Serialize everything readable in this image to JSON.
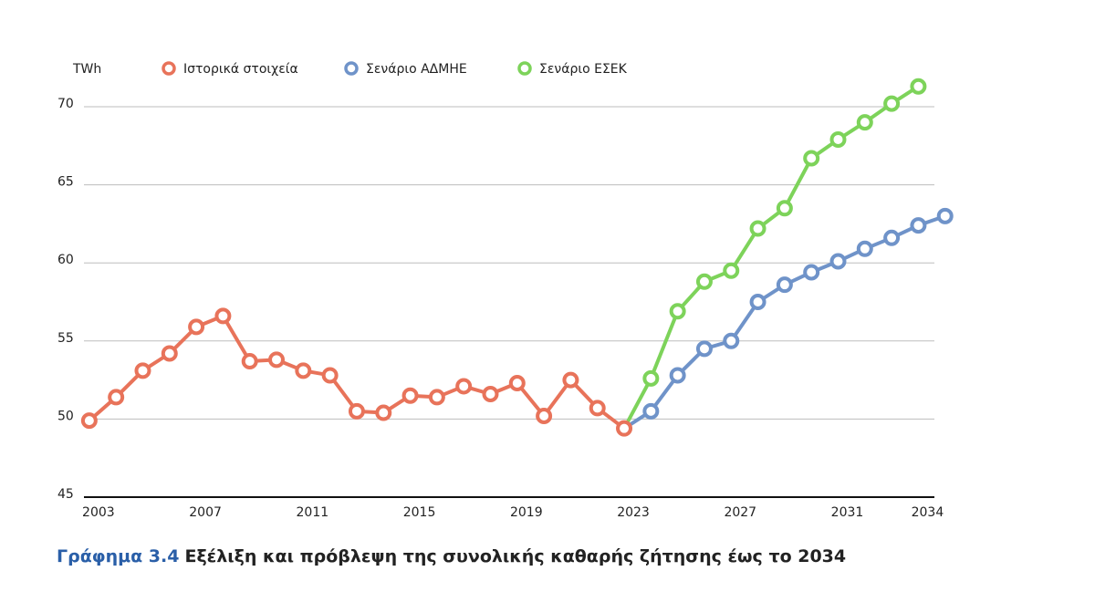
{
  "chart_data": {
    "type": "line",
    "y_label": "TWh",
    "caption_label": "Γράφημα 3.4",
    "caption_text": "Εξέλιξη και πρόβλεψη της συνολικής καθαρής ζήτησης έως το 2034",
    "xlim": [
      2002.8,
      2034.6
    ],
    "xticks": [
      2003,
      2007,
      2011,
      2015,
      2019,
      2023,
      2027,
      2031,
      2034
    ],
    "ylim": [
      45,
      70
    ],
    "yticks": [
      45,
      50,
      55,
      60,
      65,
      70
    ],
    "grid": true,
    "legend": "top",
    "series": [
      {
        "name": "Ιστορικά στοιχεία",
        "color": "#e8735a",
        "x": [
          2003,
          2004,
          2005,
          2006,
          2007,
          2008,
          2009,
          2010,
          2011,
          2012,
          2013,
          2014,
          2015,
          2016,
          2017,
          2018,
          2019,
          2020,
          2021,
          2022,
          2023
        ],
        "values": [
          49.9,
          51.4,
          53.1,
          54.2,
          55.9,
          56.6,
          53.7,
          53.8,
          53.1,
          52.8,
          50.5,
          50.4,
          51.5,
          51.4,
          52.1,
          51.6,
          52.3,
          50.2,
          52.5,
          50.7,
          49.4
        ]
      },
      {
        "name": "Σενάριο ΑΔΜΗΕ",
        "color": "#6f93c9",
        "x": [
          2023,
          2024,
          2025,
          2026,
          2027,
          2028,
          2029,
          2030,
          2031,
          2032,
          2033,
          2034,
          2035
        ],
        "values": [
          49.4,
          50.5,
          52.8,
          54.5,
          55.0,
          57.5,
          58.6,
          59.4,
          60.1,
          60.9,
          61.6,
          62.4,
          63.0
        ]
      },
      {
        "name": "Σενάριο ΕΣΕΚ",
        "color": "#7dd35a",
        "x": [
          2023,
          2024,
          2025,
          2026,
          2027,
          2028,
          2029,
          2030,
          2031,
          2032,
          2033,
          2034
        ],
        "values": [
          49.4,
          52.6,
          56.9,
          58.8,
          59.5,
          62.2,
          63.5,
          66.7,
          67.9,
          69.0,
          70.2,
          71.3
        ]
      }
    ]
  }
}
